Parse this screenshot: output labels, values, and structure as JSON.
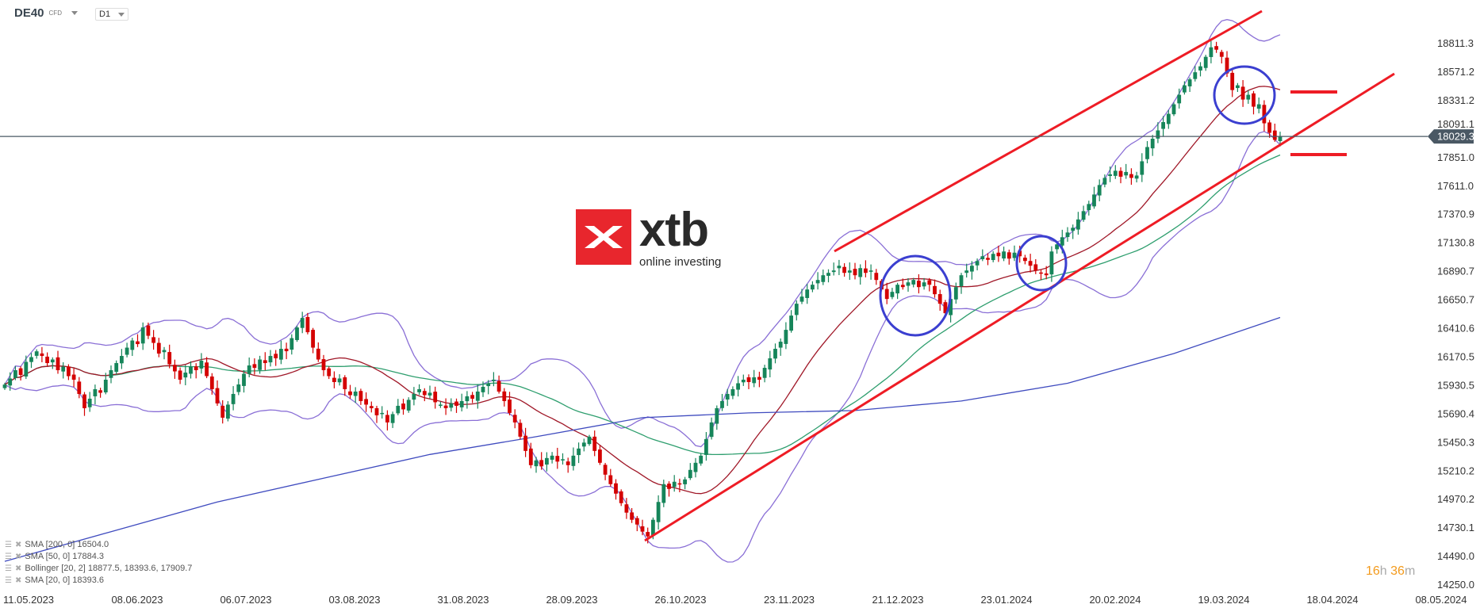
{
  "header": {
    "symbol": "DE40",
    "instrument_type": "CFD",
    "timeframe": "D1"
  },
  "logo": {
    "brand": "xtb",
    "tagline": "online investing",
    "color": "#e8262d"
  },
  "countdown": {
    "hours": "16",
    "hours_unit": "h",
    "minutes": "36",
    "minutes_unit": "m"
  },
  "indicators": [
    {
      "label": "SMA [200, 0] 16504.0",
      "color": "#3f4bbf"
    },
    {
      "label": "SMA [50, 0] 17884.3",
      "color": "#2e9e6e"
    },
    {
      "label": "Bollinger  [20, 2] 18877.5,  18393.6,  17909.7",
      "color": "#8a6fd6"
    },
    {
      "label": "SMA [20, 0] 18393.6",
      "color": "#a01828"
    }
  ],
  "chart_data": {
    "type": "candlestick",
    "current_price": 18029.3,
    "y_ticks": [
      "18811.3",
      "18571.2",
      "18331.2",
      "18091.1",
      "17851.0",
      "17611.0",
      "17370.9",
      "17130.8",
      "16890.7",
      "16650.7",
      "16410.6",
      "16170.5",
      "15930.5",
      "15690.4",
      "15450.3",
      "15210.2",
      "14970.2",
      "14730.1",
      "14490.0",
      "14250.0"
    ],
    "ylim": [
      14250.0,
      18811.3
    ],
    "x_ticks": [
      "11.05.2023",
      "08.06.2023",
      "06.07.2023",
      "03.08.2023",
      "31.08.2023",
      "28.09.2023",
      "26.10.2023",
      "23.11.2023",
      "21.12.2023",
      "23.01.2024",
      "20.02.2024",
      "19.03.2024",
      "18.04.2024",
      "08.05.2024"
    ],
    "colors": {
      "up": "#16855a",
      "down": "#d40000",
      "trendline": "#ee1c25",
      "circle": "#3b3fd0",
      "price_line": "#4a5864"
    },
    "closes": [
      15939,
      15990,
      16060,
      16020,
      16130,
      16170,
      16219,
      16180,
      16120,
      16150,
      16060,
      16090,
      16010,
      15980,
      15860,
      15740,
      15820,
      15900,
      15870,
      15980,
      16060,
      16120,
      16180,
      16250,
      16310,
      16280,
      16420,
      16350,
      16290,
      16200,
      16230,
      16110,
      16050,
      15980,
      16040,
      16090,
      16060,
      16140,
      16010,
      15900,
      15780,
      15660,
      15770,
      15860,
      15940,
      16030,
      16100,
      16080,
      16150,
      16120,
      16180,
      16160,
      16240,
      16220,
      16330,
      16420,
      16500,
      16380,
      16250,
      16150,
      16060,
      16010,
      15960,
      15990,
      15900,
      15850,
      15880,
      15800,
      15770,
      15740,
      15680,
      15700,
      15620,
      15690,
      15760,
      15730,
      15810,
      15860,
      15900,
      15850,
      15870,
      15790,
      15770,
      15740,
      15780,
      15760,
      15800,
      15840,
      15820,
      15880,
      15920,
      15950,
      15980,
      15880,
      15800,
      15700,
      15620,
      15500,
      15380,
      15260,
      15300,
      15250,
      15320,
      15340,
      15290,
      15310,
      15260,
      15340,
      15400,
      15450,
      15500,
      15380,
      15280,
      15180,
      15100,
      15020,
      14940,
      14860,
      14800,
      14760,
      14700,
      14660,
      14800,
      14950,
      15100,
      15060,
      15120,
      15100,
      15140,
      15220,
      15280,
      15340,
      15480,
      15620,
      15740,
      15800,
      15860,
      15900,
      15950,
      15980,
      15960,
      16000,
      15980,
      16080,
      16160,
      16240,
      16300,
      16400,
      16520,
      16620,
      16680,
      16740,
      16780,
      16820,
      16860,
      16880,
      16900,
      16940,
      16880,
      16900,
      16860,
      16920,
      16880,
      16900,
      16820,
      16740,
      16660,
      16720,
      16780,
      16760,
      16800,
      16820,
      16760,
      16800,
      16780,
      16700,
      16620,
      16540,
      16660,
      16760,
      16860,
      16900,
      16940,
      16980,
      17020,
      16990,
      17040,
      17020,
      17060,
      17000,
      17050,
      17020,
      16980,
      16940,
      16900,
      16880,
      16860,
      17060,
      17120,
      17180,
      17220,
      17260,
      17330,
      17400,
      17460,
      17540,
      17620,
      17680,
      17710,
      17740,
      17690,
      17730,
      17680,
      17700,
      17820,
      17940,
      18010,
      18080,
      18150,
      18220,
      18300,
      18380,
      18460,
      18510,
      18570,
      18620,
      18700,
      18780,
      18760,
      18700,
      18560,
      18420,
      18460,
      18340,
      18380,
      18280,
      18300,
      18140,
      18060,
      18000,
      18029.3
    ],
    "sma200": [
      14450,
      14700,
      14950,
      15150,
      15350,
      15500,
      15660,
      15700,
      15720,
      15800,
      15950,
      16200,
      16504
    ]
  }
}
